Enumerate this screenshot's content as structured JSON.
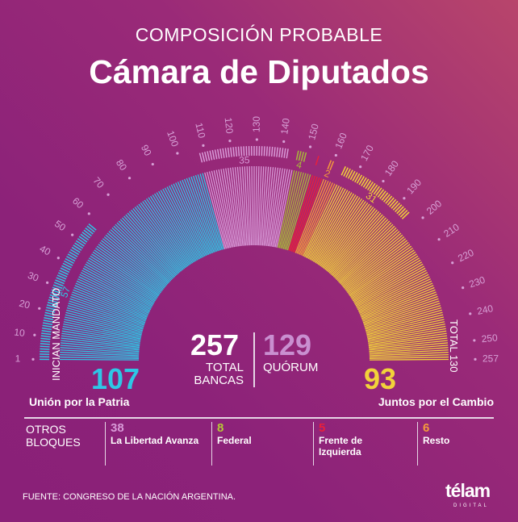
{
  "header": {
    "subtitle": "COMPOSICIÓN PROBABLE",
    "title": "Cámara de Diputados"
  },
  "chart_data": {
    "type": "hemicycle",
    "title": "Cámara de Diputados",
    "total_seats": 257,
    "quorum": 129,
    "series": [
      {
        "name": "Unión por la Patria",
        "seats": 107,
        "new_mandates": 57,
        "color": "#2ec7e6"
      },
      {
        "name": "La Libertad Avanza",
        "seats": 38,
        "new_mandates": 35,
        "color": "#d99ad8"
      },
      {
        "name": "Federal",
        "seats": 8,
        "new_mandates": 4,
        "color": "#a8b83a"
      },
      {
        "name": "Frente de Izquierda",
        "seats": 5,
        "new_mandates": 1,
        "color": "#e8203c"
      },
      {
        "name": "Resto",
        "seats": 6,
        "new_mandates": 2,
        "color": "#f59a3c"
      },
      {
        "name": "Juntos por el Cambio",
        "seats": 93,
        "new_mandates": 31,
        "color": "#f2d23a"
      }
    ],
    "new_mandate_labels": [
      "57",
      "35",
      "4",
      "2",
      "31"
    ],
    "ticks": [
      "1",
      "10",
      "20",
      "30",
      "40",
      "50",
      "60",
      "70",
      "80",
      "90",
      "100",
      "110",
      "120",
      "130",
      "140",
      "150",
      "160",
      "170",
      "180",
      "190",
      "200",
      "210",
      "220",
      "230",
      "240",
      "250",
      "257"
    ]
  },
  "center": {
    "total": "257",
    "total_label": "TOTAL BANCAS",
    "quorum": "129",
    "quorum_label": "QUÓRUM"
  },
  "left_axis_label": "INICIAN MANDATO",
  "right_axis_label": "TOTAL 130",
  "main": {
    "left_value": "107",
    "left_name": "Unión por la Patria",
    "right_value": "93",
    "right_name": "Juntos por el Cambio"
  },
  "others": {
    "label": "OTROS BLOQUES",
    "items": [
      {
        "value": "38",
        "name": "La Libertad Avanza",
        "color": "#d99ad8"
      },
      {
        "value": "8",
        "name": "Federal",
        "color": "#b5c936"
      },
      {
        "value": "5",
        "name": "Frente de Izquierda",
        "color": "#e8203c"
      },
      {
        "value": "6",
        "name": "Resto",
        "color": "#f59a3c"
      }
    ]
  },
  "footer": {
    "source": "FUENTE:  CONGRESO DE LA NACIÓN ARGENTINA.",
    "logo": "télam",
    "logo_sub": "DIGITAL"
  }
}
